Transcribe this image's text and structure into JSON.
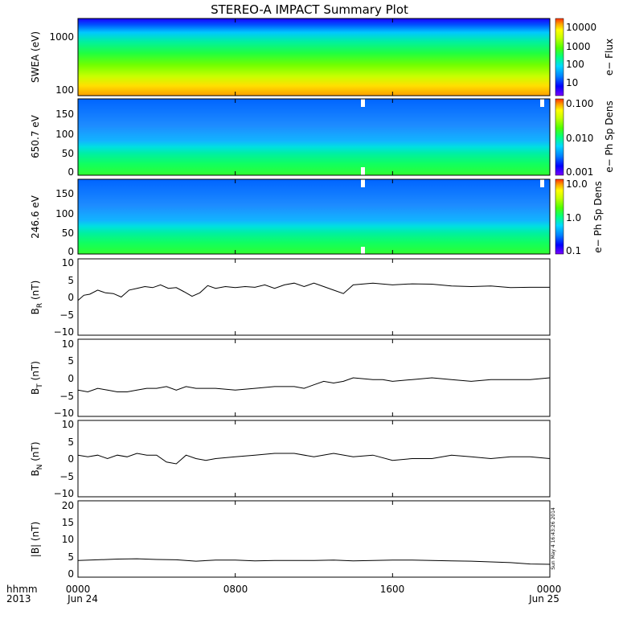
{
  "title": "STEREO-A IMPACT Summary Plot",
  "side_note": "Sun May  4 16:43:26 2014",
  "time_axis": {
    "ticks": [
      {
        "main": "0000",
        "sub": "Jun 24",
        "hour": 0
      },
      {
        "main": "0800",
        "sub": "",
        "hour": 8
      },
      {
        "main": "1600",
        "sub": "",
        "hour": 16
      },
      {
        "main": "0000",
        "sub": "Jun 25",
        "hour": 24
      }
    ],
    "corner_top": "hhmm",
    "corner_bottom": "2013",
    "range_hours": [
      0,
      24
    ]
  },
  "colors": {
    "line": "#000000",
    "frame": "#000000",
    "colormap": [
      "#7b00ff",
      "#0000ff",
      "#0080ff",
      "#00c8ff",
      "#00ff80",
      "#60ff00",
      "#c8ff00",
      "#ffff00",
      "#ffa000",
      "#ff3000"
    ]
  },
  "panels": {
    "swea": {
      "ylabel": "SWEA (eV)",
      "yticks": [
        "1000",
        "100"
      ],
      "cbar_label": "e− Flux",
      "cbar_ticks": [
        "10000",
        "1000",
        "100",
        "10"
      ]
    },
    "ch650": {
      "ylabel": "650.7 eV",
      "yticks": [
        "150",
        "100",
        "50",
        "0"
      ],
      "cbar_label": "e− Ph Sp Dens",
      "cbar_ticks": [
        "0.100",
        "0.010",
        "0.001"
      ]
    },
    "ch246": {
      "ylabel": "246.6 eV",
      "yticks": [
        "150",
        "100",
        "50",
        "0"
      ],
      "cbar_label": "e− Ph Sp Dens",
      "cbar_ticks": [
        "10.0",
        "1.0",
        "0.1"
      ]
    },
    "br": {
      "ylabel": "B",
      "sub": "R",
      "unit": " (nT)",
      "yticks": [
        "10",
        "5",
        "0",
        "−5",
        "−10"
      ]
    },
    "bt": {
      "ylabel": "B",
      "sub": "T",
      "unit": " (nT)",
      "yticks": [
        "10",
        "5",
        "0",
        "−5",
        "−10"
      ]
    },
    "bn": {
      "ylabel": "B",
      "sub": "N",
      "unit": " (nT)",
      "yticks": [
        "10",
        "5",
        "0",
        "−5",
        "−10"
      ]
    },
    "bmag": {
      "ylabel": "|B| (nT)",
      "yticks": [
        "20",
        "15",
        "10",
        "5",
        "0"
      ]
    }
  },
  "chart_data": [
    {
      "type": "heatmap",
      "title": "STEREO-A IMPACT Summary Plot",
      "ylabel": "SWEA (eV)",
      "y_scale": "log",
      "ylim": [
        90,
        2100
      ],
      "colorbar": {
        "label": "e− Flux",
        "scale": "log",
        "range": [
          3,
          25000
        ]
      },
      "note": "log flux decreases with energy",
      "energy_eV": [
        100,
        200,
        400,
        1000,
        2000
      ],
      "flux": [
        10000,
        1500,
        300,
        60,
        8
      ]
    },
    {
      "type": "heatmap",
      "ylabel": "650.7 eV",
      "ylim": [
        0,
        180
      ],
      "colorbar": {
        "label": "e− Ph Sp Dens",
        "scale": "log",
        "range": [
          0.001,
          0.1
        ]
      },
      "pitch_angle_deg": [
        10,
        50,
        70,
        100,
        150
      ],
      "phsp_dens": [
        0.012,
        0.008,
        0.004,
        0.003,
        0.003
      ]
    },
    {
      "type": "heatmap",
      "ylabel": "246.6 eV",
      "ylim": [
        0,
        180
      ],
      "colorbar": {
        "label": "e− Ph Sp Dens",
        "scale": "log",
        "range": [
          0.1,
          10
        ]
      },
      "pitch_angle_deg": [
        10,
        50,
        70,
        100,
        150
      ],
      "phsp_dens": [
        1.5,
        1.0,
        0.5,
        0.35,
        0.35
      ]
    },
    {
      "type": "line",
      "ylabel": "B_R (nT)",
      "ylim": [
        -11,
        11
      ],
      "x": [
        0,
        0.3,
        0.6,
        1,
        1.4,
        1.8,
        2.2,
        2.6,
        3,
        3.4,
        3.8,
        4.2,
        4.6,
        5,
        5.4,
        5.8,
        6.2,
        6.6,
        7,
        7.5,
        8,
        8.5,
        9,
        9.5,
        10,
        10.5,
        11,
        11.5,
        12,
        12.5,
        13,
        13.5,
        14,
        15,
        16,
        17,
        18,
        19,
        20,
        21,
        22,
        23,
        24
      ],
      "y": [
        -1,
        0.5,
        0.8,
        2,
        1.2,
        1,
        0,
        2,
        2.5,
        3,
        2.7,
        3.5,
        2.5,
        2.7,
        1.5,
        0.2,
        1.2,
        3.3,
        2.5,
        3,
        2.7,
        3,
        2.8,
        3.5,
        2.5,
        3.5,
        4,
        3,
        4,
        3,
        2,
        1,
        3.5,
        4,
        3.5,
        3.8,
        3.7,
        3.2,
        3,
        3.2,
        2.7,
        2.8,
        2.8
      ]
    },
    {
      "type": "line",
      "ylabel": "B_T (nT)",
      "ylim": [
        -11,
        11
      ],
      "x": [
        0,
        0.5,
        1,
        1.5,
        2,
        2.5,
        3,
        3.5,
        4,
        4.5,
        5,
        5.5,
        6,
        7,
        8,
        9,
        10,
        11,
        11.5,
        12,
        12.5,
        13,
        13.5,
        14,
        15,
        15.5,
        16,
        17,
        18,
        19,
        20,
        21,
        22,
        23,
        24
      ],
      "y": [
        -3.5,
        -4,
        -3,
        -3.5,
        -4,
        -4,
        -3.5,
        -3,
        -3,
        -2.5,
        -3.5,
        -2.5,
        -3,
        -3,
        -3.5,
        -3,
        -2.5,
        -2.5,
        -3,
        -2,
        -1,
        -1.5,
        -1,
        0,
        -0.5,
        -0.5,
        -1,
        -0.5,
        0,
        -0.5,
        -1,
        -0.5,
        -0.5,
        -0.5,
        0
      ]
    },
    {
      "type": "line",
      "ylabel": "B_N (nT)",
      "ylim": [
        -11,
        11
      ],
      "x": [
        0,
        0.5,
        1,
        1.5,
        2,
        2.5,
        3,
        3.5,
        4,
        4.5,
        5,
        5.5,
        6,
        6.5,
        7,
        8,
        9,
        10,
        11,
        12,
        13,
        14,
        15,
        16,
        17,
        18,
        19,
        20,
        21,
        22,
        23,
        24
      ],
      "y": [
        1,
        0.5,
        1,
        0,
        1,
        0.5,
        1.5,
        1,
        1,
        -1,
        -1.5,
        1,
        0,
        -0.5,
        0,
        0.5,
        1,
        1.5,
        1.5,
        0.5,
        1.5,
        0.5,
        1,
        -0.5,
        0,
        0,
        1,
        0.5,
        0,
        0.5,
        0.5,
        0
      ]
    },
    {
      "type": "line",
      "ylabel": "|B| (nT)",
      "ylim": [
        -1,
        21
      ],
      "x": [
        0,
        1,
        2,
        3,
        4,
        5,
        6,
        7,
        8,
        9,
        10,
        11,
        12,
        13,
        14,
        15,
        16,
        17,
        18,
        19,
        20,
        21,
        22,
        23,
        24
      ],
      "y": [
        3.8,
        4.0,
        4.2,
        4.3,
        4.1,
        4.0,
        3.6,
        3.9,
        3.9,
        3.7,
        3.8,
        3.8,
        3.8,
        3.9,
        3.7,
        3.8,
        3.9,
        3.9,
        3.8,
        3.7,
        3.6,
        3.4,
        3.2,
        2.8,
        2.7
      ]
    }
  ]
}
